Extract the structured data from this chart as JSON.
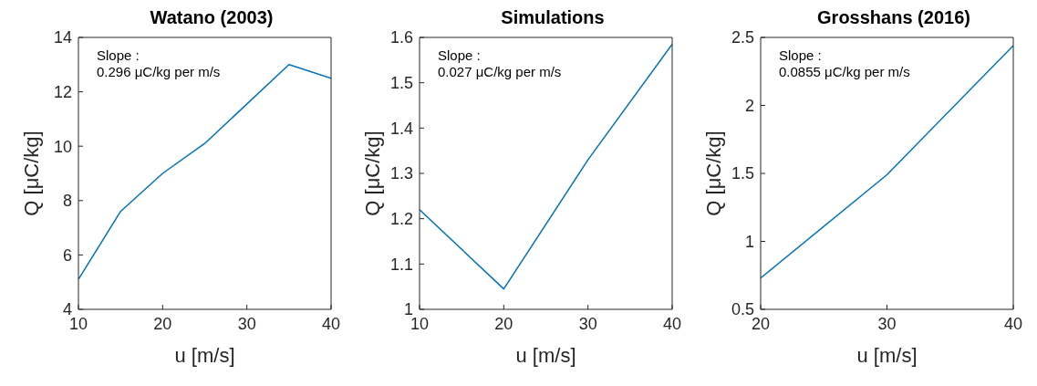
{
  "chart_data": [
    {
      "type": "line",
      "title": "Watano (2003)",
      "xlabel": "u [m/s]",
      "ylabel": "Q [μC/kg]",
      "x": [
        10,
        15,
        20,
        25,
        35,
        40
      ],
      "values": [
        5.1,
        7.6,
        9.0,
        10.1,
        13.0,
        12.5
      ],
      "color": "#0072bd",
      "xlim": [
        10,
        40
      ],
      "xticks": [
        10,
        20,
        30,
        40
      ],
      "ylim": [
        4,
        14
      ],
      "yticks": [
        4,
        6,
        8,
        10,
        12,
        14
      ],
      "annotations": [
        "Slope :",
        "0.296 μC/kg per m/s"
      ]
    },
    {
      "type": "line",
      "title": "Simulations",
      "xlabel": "u [m/s]",
      "ylabel": "Q [μC/kg]",
      "x": [
        10,
        20,
        30,
        40
      ],
      "values": [
        1.22,
        1.045,
        1.33,
        1.585
      ],
      "color": "#0072bd",
      "xlim": [
        10,
        40
      ],
      "xticks": [
        10,
        20,
        30,
        40
      ],
      "ylim": [
        1,
        1.6
      ],
      "yticks": [
        1,
        1.1,
        1.2,
        1.3,
        1.4,
        1.5,
        1.6
      ],
      "annotations": [
        "Slope :",
        "0.027 μC/kg per m/s"
      ]
    },
    {
      "type": "line",
      "title": "Grosshans (2016)",
      "xlabel": "u [m/s]",
      "ylabel": "Q [μC/kg]",
      "x": [
        20,
        30,
        40
      ],
      "values": [
        0.73,
        1.49,
        2.44
      ],
      "color": "#0072bd",
      "xlim": [
        20,
        40
      ],
      "xticks": [
        20,
        30,
        40
      ],
      "ylim": [
        0.5,
        2.5
      ],
      "yticks": [
        0.5,
        1,
        1.5,
        2,
        2.5
      ],
      "annotations": [
        "Slope :",
        "0.0855 μC/kg per m/s"
      ]
    }
  ]
}
